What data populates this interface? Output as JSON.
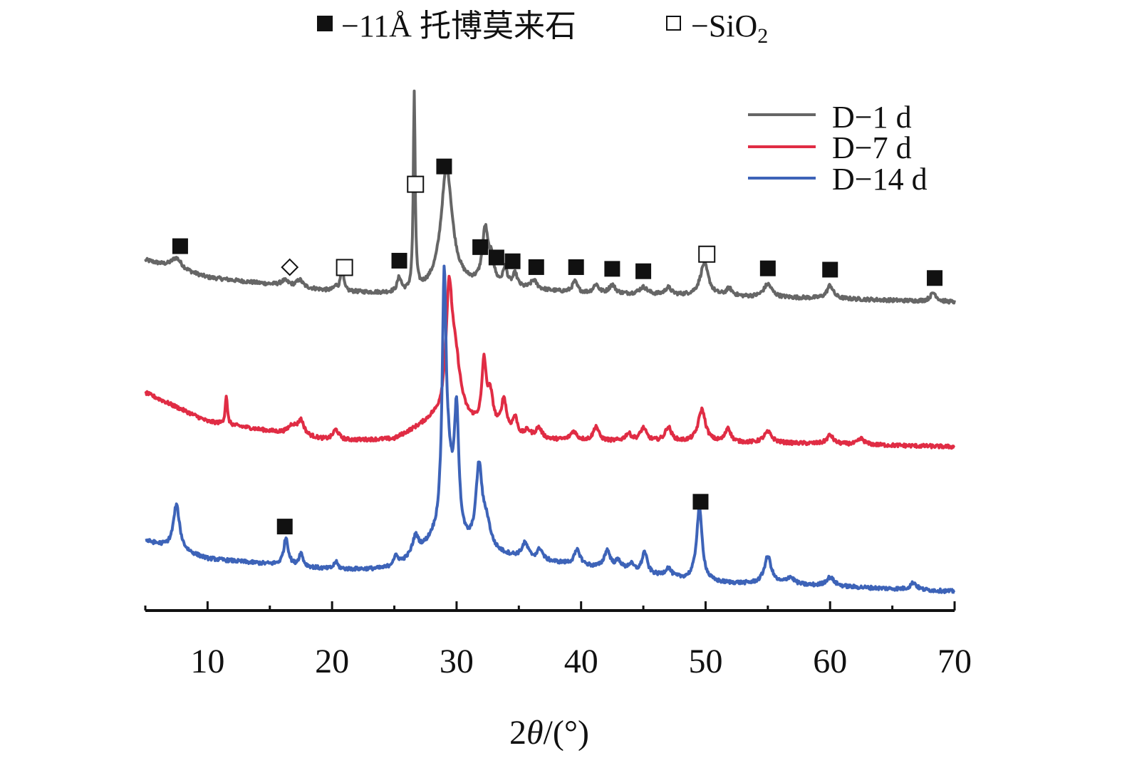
{
  "chart_data": {
    "type": "line",
    "xlabel_prefix": "2",
    "xlabel_theta": "θ",
    "xlabel_suffix": "/(°)",
    "xlim": [
      5,
      70
    ],
    "x_ticks": [
      10,
      20,
      30,
      40,
      50,
      60,
      70
    ],
    "y_axis_shown": false,
    "grid": false,
    "legend_position": "top-right",
    "top_legend": {
      "filled_label": "−11Å 托博莫来石",
      "open_label_main": "−SiO",
      "open_label_sub": "2"
    },
    "series": [
      {
        "name": "D−1 d",
        "color": "#666666",
        "offset": 0.0,
        "baseline": [
          [
            5,
            0.58
          ],
          [
            10,
            0.34
          ],
          [
            20,
            0.15
          ],
          [
            26,
            0.1
          ],
          [
            30,
            0.22
          ],
          [
            35,
            0.18
          ],
          [
            40,
            0.12
          ],
          [
            50,
            0.08
          ],
          [
            60,
            0.05
          ],
          [
            70,
            0.0
          ]
        ],
        "peaks": [
          [
            7.5,
            0.15,
            0.5
          ],
          [
            16.2,
            0.07,
            0.4
          ],
          [
            17.4,
            0.1,
            0.3
          ],
          [
            20.3,
            0.06,
            0.2
          ],
          [
            20.8,
            0.4,
            0.12
          ],
          [
            25.4,
            0.2,
            0.2
          ],
          [
            26.6,
            2.7,
            0.09
          ],
          [
            29.2,
            1.65,
            0.55
          ],
          [
            32.3,
            0.75,
            0.28
          ],
          [
            32.8,
            0.3,
            0.25
          ],
          [
            33.9,
            0.25,
            0.2
          ],
          [
            34.7,
            0.18,
            0.22
          ],
          [
            36.2,
            0.12,
            0.3
          ],
          [
            39.5,
            0.15,
            0.25
          ],
          [
            41.2,
            0.12,
            0.25
          ],
          [
            42.5,
            0.12,
            0.3
          ],
          [
            45.0,
            0.1,
            0.4
          ],
          [
            47.0,
            0.1,
            0.3
          ],
          [
            49.9,
            0.45,
            0.4
          ],
          [
            51.9,
            0.1,
            0.3
          ],
          [
            55.0,
            0.18,
            0.4
          ],
          [
            60.0,
            0.18,
            0.3
          ],
          [
            68.3,
            0.12,
            0.3
          ]
        ]
      },
      {
        "name": "D−7 d",
        "color": "#e02c44",
        "offset": -2.0,
        "baseline": [
          [
            5,
            0.75
          ],
          [
            10,
            0.35
          ],
          [
            20,
            0.08
          ],
          [
            25,
            0.1
          ],
          [
            28,
            0.35
          ],
          [
            30,
            0.35
          ],
          [
            35,
            0.1
          ],
          [
            40,
            0.08
          ],
          [
            50,
            0.06
          ],
          [
            60,
            0.04
          ],
          [
            70,
            0.0
          ]
        ],
        "peaks": [
          [
            11.5,
            0.4,
            0.1
          ],
          [
            16.8,
            0.12,
            0.4
          ],
          [
            17.5,
            0.2,
            0.3
          ],
          [
            20.3,
            0.15,
            0.3
          ],
          [
            29.4,
            1.6,
            0.3
          ],
          [
            29.9,
            0.75,
            0.5
          ],
          [
            32.2,
            0.85,
            0.2
          ],
          [
            32.7,
            0.45,
            0.3
          ],
          [
            33.8,
            0.45,
            0.25
          ],
          [
            34.7,
            0.25,
            0.25
          ],
          [
            35.7,
            0.1,
            0.3
          ],
          [
            36.6,
            0.15,
            0.3
          ],
          [
            39.4,
            0.12,
            0.3
          ],
          [
            41.2,
            0.2,
            0.25
          ],
          [
            43.8,
            0.1,
            0.3
          ],
          [
            45.0,
            0.18,
            0.3
          ],
          [
            47.0,
            0.2,
            0.3
          ],
          [
            49.7,
            0.45,
            0.35
          ],
          [
            51.8,
            0.2,
            0.25
          ],
          [
            55.0,
            0.15,
            0.4
          ],
          [
            60.0,
            0.12,
            0.3
          ],
          [
            62.5,
            0.08,
            0.3
          ]
        ]
      },
      {
        "name": "D−14 d",
        "color": "#3d63b8",
        "offset": -4.0,
        "baseline": [
          [
            5,
            0.7
          ],
          [
            10,
            0.45
          ],
          [
            20,
            0.3
          ],
          [
            25,
            0.3
          ],
          [
            28,
            0.6
          ],
          [
            30,
            0.55
          ],
          [
            33,
            0.5
          ],
          [
            40,
            0.35
          ],
          [
            50,
            0.12
          ],
          [
            60,
            0.07
          ],
          [
            70,
            0.0
          ]
        ],
        "peaks": [
          [
            7.5,
            0.62,
            0.3
          ],
          [
            16.3,
            0.38,
            0.22
          ],
          [
            17.5,
            0.18,
            0.2
          ],
          [
            20.3,
            0.1,
            0.2
          ],
          [
            25.1,
            0.15,
            0.3
          ],
          [
            26.7,
            0.25,
            0.3
          ],
          [
            29.0,
            3.1,
            0.18
          ],
          [
            29.3,
            1.0,
            0.5
          ],
          [
            30.0,
            1.65,
            0.22
          ],
          [
            31.8,
            1.1,
            0.3
          ],
          [
            32.4,
            0.35,
            0.4
          ],
          [
            35.5,
            0.2,
            0.3
          ],
          [
            36.7,
            0.15,
            0.25
          ],
          [
            39.7,
            0.2,
            0.3
          ],
          [
            42.1,
            0.25,
            0.3
          ],
          [
            43.0,
            0.12,
            0.3
          ],
          [
            44.0,
            0.1,
            0.3
          ],
          [
            45.1,
            0.3,
            0.25
          ],
          [
            47.0,
            0.12,
            0.3
          ],
          [
            49.5,
            1.0,
            0.28
          ],
          [
            55.0,
            0.38,
            0.35
          ],
          [
            56.8,
            0.1,
            0.4
          ],
          [
            60.0,
            0.12,
            0.4
          ],
          [
            66.7,
            0.1,
            0.3
          ]
        ]
      }
    ],
    "markers": [
      {
        "type": "filled",
        "series": "D−1 d",
        "x": 7.8
      },
      {
        "type": "diamond",
        "series": "D−1 d",
        "x": 16.6
      },
      {
        "type": "open",
        "series": "D−1 d",
        "x": 21.0
      },
      {
        "type": "filled",
        "series": "D−1 d",
        "x": 25.4
      },
      {
        "type": "open",
        "series": "D−1 d",
        "x": 26.7
      },
      {
        "type": "filled",
        "series": "D−1 d",
        "x": 29.0
      },
      {
        "type": "filled",
        "series": "D−1 d",
        "x": 31.9
      },
      {
        "type": "filled",
        "series": "D−1 d",
        "x": 33.2
      },
      {
        "type": "filled",
        "series": "D−1 d",
        "x": 34.5
      },
      {
        "type": "filled",
        "series": "D−1 d",
        "x": 36.4
      },
      {
        "type": "filled",
        "series": "D−1 d",
        "x": 39.6
      },
      {
        "type": "filled",
        "series": "D−1 d",
        "x": 42.5
      },
      {
        "type": "filled",
        "series": "D−1 d",
        "x": 45.0
      },
      {
        "type": "open",
        "series": "D−1 d",
        "x": 50.1
      },
      {
        "type": "filled",
        "series": "D−1 d",
        "x": 55.0
      },
      {
        "type": "filled",
        "series": "D−1 d",
        "x": 60.0
      },
      {
        "type": "filled",
        "series": "D−1 d",
        "x": 68.4
      },
      {
        "type": "filled",
        "series": "D−14 d",
        "x": 16.2
      },
      {
        "type": "filled",
        "series": "D−14 d",
        "x": 49.6
      }
    ]
  }
}
